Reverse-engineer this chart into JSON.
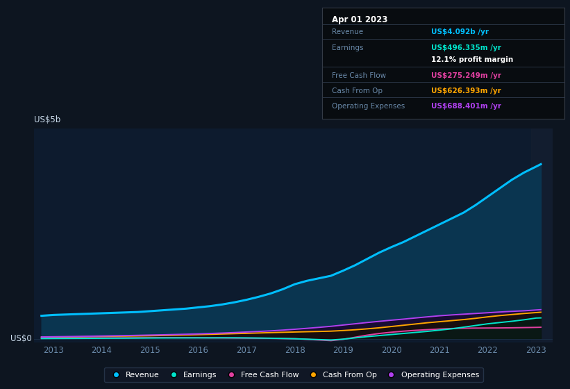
{
  "bg_color": "#0d1520",
  "plot_bg_color": "#0d1b2e",
  "years": [
    2012.75,
    2013.0,
    2013.25,
    2013.5,
    2013.75,
    2014.0,
    2014.25,
    2014.5,
    2014.75,
    2015.0,
    2015.25,
    2015.5,
    2015.75,
    2016.0,
    2016.25,
    2016.5,
    2016.75,
    2017.0,
    2017.25,
    2017.5,
    2017.75,
    2018.0,
    2018.25,
    2018.5,
    2018.75,
    2019.0,
    2019.25,
    2019.5,
    2019.75,
    2020.0,
    2020.25,
    2020.5,
    2020.75,
    2021.0,
    2021.25,
    2021.5,
    2021.75,
    2022.0,
    2022.25,
    2022.5,
    2022.75,
    2023.0,
    2023.1
  ],
  "revenue": [
    0.55,
    0.57,
    0.58,
    0.59,
    0.6,
    0.61,
    0.62,
    0.63,
    0.64,
    0.66,
    0.68,
    0.7,
    0.72,
    0.75,
    0.78,
    0.82,
    0.87,
    0.93,
    1.0,
    1.08,
    1.18,
    1.3,
    1.38,
    1.44,
    1.5,
    1.62,
    1.75,
    1.9,
    2.05,
    2.18,
    2.3,
    2.44,
    2.58,
    2.72,
    2.86,
    3.0,
    3.18,
    3.38,
    3.58,
    3.78,
    3.95,
    4.092,
    4.15
  ],
  "earnings": [
    0.01,
    0.012,
    0.013,
    0.014,
    0.015,
    0.016,
    0.017,
    0.018,
    0.02,
    0.022,
    0.023,
    0.024,
    0.025,
    0.026,
    0.026,
    0.027,
    0.027,
    0.025,
    0.022,
    0.018,
    0.012,
    0.005,
    -0.005,
    -0.015,
    -0.025,
    -0.005,
    0.025,
    0.055,
    0.08,
    0.105,
    0.13,
    0.155,
    0.18,
    0.21,
    0.24,
    0.28,
    0.32,
    0.36,
    0.39,
    0.42,
    0.455,
    0.496,
    0.5
  ],
  "free_cash_flow": [
    0.018,
    0.02,
    0.022,
    0.023,
    0.025,
    0.026,
    0.027,
    0.028,
    0.029,
    0.03,
    0.031,
    0.03,
    0.029,
    0.028,
    0.026,
    0.025,
    0.022,
    0.02,
    0.018,
    0.015,
    0.01,
    0.005,
    -0.01,
    -0.025,
    -0.04,
    -0.01,
    0.04,
    0.09,
    0.13,
    0.16,
    0.185,
    0.205,
    0.22,
    0.235,
    0.248,
    0.255,
    0.258,
    0.26,
    0.262,
    0.265,
    0.27,
    0.275,
    0.278
  ],
  "cash_from_op": [
    0.04,
    0.045,
    0.048,
    0.05,
    0.055,
    0.06,
    0.065,
    0.068,
    0.072,
    0.076,
    0.082,
    0.088,
    0.095,
    0.102,
    0.11,
    0.118,
    0.126,
    0.134,
    0.142,
    0.15,
    0.158,
    0.165,
    0.172,
    0.178,
    0.185,
    0.2,
    0.218,
    0.24,
    0.265,
    0.295,
    0.325,
    0.355,
    0.385,
    0.41,
    0.435,
    0.46,
    0.49,
    0.525,
    0.555,
    0.58,
    0.605,
    0.626,
    0.635
  ],
  "op_expenses": [
    0.048,
    0.052,
    0.056,
    0.06,
    0.065,
    0.07,
    0.075,
    0.08,
    0.086,
    0.092,
    0.098,
    0.105,
    0.112,
    0.12,
    0.13,
    0.14,
    0.152,
    0.165,
    0.178,
    0.192,
    0.21,
    0.23,
    0.252,
    0.275,
    0.3,
    0.33,
    0.36,
    0.39,
    0.418,
    0.445,
    0.47,
    0.498,
    0.525,
    0.55,
    0.57,
    0.588,
    0.605,
    0.622,
    0.64,
    0.655,
    0.668,
    0.688,
    0.695
  ],
  "revenue_color": "#00bfff",
  "earnings_color": "#00e5cc",
  "fcf_color": "#e040a0",
  "cashop_color": "#ffa500",
  "opex_color": "#b040f0",
  "revenue_fill": "#0a3550",
  "grid_color": "#1a2e45",
  "tick_color": "#6a8aaa",
  "ylabel": "US$5b",
  "y0label": "US$0",
  "xlim_min": 2012.6,
  "xlim_max": 2023.35,
  "ylim_min": -0.08,
  "ylim_max": 5.0,
  "xticks": [
    2013,
    2014,
    2015,
    2016,
    2017,
    2018,
    2019,
    2020,
    2021,
    2022,
    2023
  ],
  "tooltip_title": "Apr 01 2023",
  "tooltip_rows": [
    {
      "label": "Revenue",
      "value": "US$4.092b /yr",
      "label_color": "#6a8aaa",
      "value_color": "#00bfff"
    },
    {
      "label": "Earnings",
      "value": "US$496.335m /yr",
      "label_color": "#6a8aaa",
      "value_color": "#00e5cc"
    },
    {
      "label": "",
      "value": "12.1% profit margin",
      "label_color": "#6a8aaa",
      "value_color": "#ffffff"
    },
    {
      "label": "Free Cash Flow",
      "value": "US$275.249m /yr",
      "label_color": "#6a8aaa",
      "value_color": "#e040a0"
    },
    {
      "label": "Cash From Op",
      "value": "US$626.393m /yr",
      "label_color": "#6a8aaa",
      "value_color": "#ffa500"
    },
    {
      "label": "Operating Expenses",
      "value": "US$688.401m /yr",
      "label_color": "#6a8aaa",
      "value_color": "#b040f0"
    }
  ],
  "legend_entries": [
    {
      "label": "Revenue",
      "color": "#00bfff"
    },
    {
      "label": "Earnings",
      "color": "#00e5cc"
    },
    {
      "label": "Free Cash Flow",
      "color": "#e040a0"
    },
    {
      "label": "Cash From Op",
      "color": "#ffa500"
    },
    {
      "label": "Operating Expenses",
      "color": "#b040f0"
    }
  ]
}
